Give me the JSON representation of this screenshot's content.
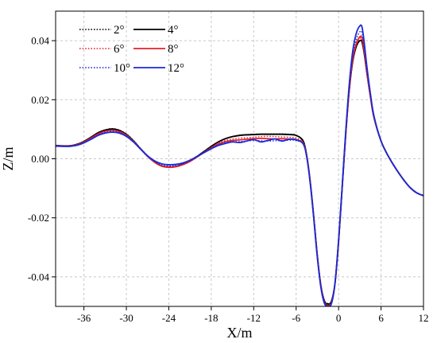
{
  "chart_data": {
    "type": "line",
    "title": "",
    "xlabel": "X/m",
    "ylabel": "Z/m",
    "xlim": [
      -40,
      12
    ],
    "ylim": [
      -0.05,
      0.05
    ],
    "xticks": [
      -36,
      -30,
      -24,
      -18,
      -12,
      -6,
      0,
      6,
      12
    ],
    "xtick_labels": [
      "-36",
      "-30",
      "-24",
      "-18",
      "-12",
      "-6",
      "0",
      "6",
      "12"
    ],
    "yticks": [
      -0.04,
      -0.02,
      0.0,
      0.02,
      0.04
    ],
    "ytick_labels": [
      "-0.04",
      "-0.02",
      "0.00",
      "0.02",
      "0.04"
    ],
    "grid": true,
    "legend_position": "top-left",
    "series": [
      {
        "name": "2°",
        "color": "#000000",
        "style": "dotted",
        "x": [
          -40,
          -38,
          -36.5,
          -35,
          -34,
          -33,
          -32,
          -31,
          -30,
          -29,
          -28,
          -27,
          -26,
          -25,
          -24,
          -23,
          -22,
          -21,
          -20,
          -19,
          -18,
          -17,
          -16,
          -15,
          -14,
          -13,
          -12,
          -11,
          -10,
          -9,
          -8,
          -7,
          -6,
          -5,
          -4.5,
          -4,
          -3.5,
          -3,
          -2.5,
          -2,
          -1.5,
          -1,
          -0.5,
          0,
          0.5,
          1,
          1.5,
          2,
          2.5,
          3,
          3.3,
          3.6,
          4,
          4.5,
          5,
          6,
          7,
          8,
          9,
          10,
          11,
          12
        ],
        "y": [
          0.0045,
          0.0044,
          0.0053,
          0.0073,
          0.0088,
          0.0098,
          0.0102,
          0.0097,
          0.0084,
          0.0062,
          0.0035,
          0.001,
          -0.001,
          -0.0023,
          -0.0027,
          -0.0025,
          -0.0018,
          -0.0007,
          0.0008,
          0.0025,
          0.0042,
          0.0057,
          0.0068,
          0.0075,
          0.008,
          0.0082,
          0.0083,
          0.0084,
          0.0084,
          0.0084,
          0.0084,
          0.0083,
          0.008,
          0.006,
          0.001,
          -0.008,
          -0.02,
          -0.033,
          -0.043,
          -0.048,
          -0.049,
          -0.048,
          -0.042,
          -0.028,
          -0.01,
          0.008,
          0.023,
          0.033,
          0.038,
          0.04,
          0.0395,
          0.036,
          0.029,
          0.021,
          0.014,
          0.006,
          0.001,
          -0.003,
          -0.0065,
          -0.0095,
          -0.0115,
          -0.0125
        ]
      },
      {
        "name": "4°",
        "color": "#000000",
        "style": "solid",
        "x": [
          -40,
          -38,
          -36.5,
          -35,
          -34,
          -33,
          -32,
          -31,
          -30,
          -29,
          -28,
          -27,
          -26,
          -25,
          -24,
          -23,
          -22,
          -21,
          -20,
          -19,
          -18,
          -17,
          -16,
          -15,
          -14,
          -13,
          -12,
          -11,
          -10,
          -9,
          -8,
          -7,
          -6,
          -5,
          -4.5,
          -4,
          -3.5,
          -3,
          -2.5,
          -2,
          -1.5,
          -1,
          -0.5,
          0,
          0.5,
          1,
          1.5,
          2,
          2.5,
          3,
          3.3,
          3.6,
          4,
          4.5,
          5,
          6,
          7,
          8,
          9,
          10,
          11,
          12
        ],
        "y": [
          0.0045,
          0.0044,
          0.0053,
          0.0073,
          0.0088,
          0.0097,
          0.0101,
          0.0096,
          0.0083,
          0.0061,
          0.0034,
          0.0009,
          -0.0011,
          -0.0024,
          -0.0028,
          -0.0026,
          -0.0018,
          -0.0007,
          0.0008,
          0.0025,
          0.0042,
          0.0057,
          0.0068,
          0.0075,
          0.0079,
          0.0081,
          0.0082,
          0.0083,
          0.0083,
          0.0083,
          0.0083,
          0.0082,
          0.0079,
          0.006,
          0.001,
          -0.008,
          -0.02,
          -0.033,
          -0.043,
          -0.0482,
          -0.0492,
          -0.0482,
          -0.042,
          -0.028,
          -0.01,
          0.008,
          0.023,
          0.033,
          0.038,
          0.04,
          0.0396,
          0.036,
          0.029,
          0.021,
          0.014,
          0.006,
          0.001,
          -0.003,
          -0.0065,
          -0.0095,
          -0.0115,
          -0.0125
        ]
      },
      {
        "name": "6°",
        "color": "#e8202a",
        "style": "dotted",
        "x": [
          -40,
          -38,
          -36.5,
          -35,
          -34,
          -33,
          -32,
          -31,
          -30,
          -29,
          -28,
          -27,
          -26,
          -25,
          -24,
          -23,
          -22,
          -21,
          -20,
          -19,
          -18,
          -17,
          -16,
          -15,
          -14,
          -13,
          -12,
          -11,
          -10,
          -9,
          -8,
          -7,
          -6,
          -5,
          -4.5,
          -4,
          -3.5,
          -3,
          -2.5,
          -2,
          -1.5,
          -1,
          -0.5,
          0,
          0.5,
          1,
          1.5,
          2,
          2.5,
          3,
          3.3,
          3.6,
          4,
          4.5,
          5,
          6,
          7,
          8,
          9,
          10,
          11,
          12
        ],
        "y": [
          0.0045,
          0.0044,
          0.0052,
          0.0071,
          0.0085,
          0.0094,
          0.0097,
          0.0093,
          0.0081,
          0.006,
          0.0034,
          0.0009,
          -0.0011,
          -0.0024,
          -0.0028,
          -0.0026,
          -0.0019,
          -0.0008,
          0.0007,
          0.0023,
          0.0039,
          0.0053,
          0.0062,
          0.0067,
          0.007,
          0.0071,
          0.0073,
          0.0075,
          0.0076,
          0.0075,
          0.0074,
          0.0073,
          0.007,
          0.0055,
          0.001,
          -0.008,
          -0.02,
          -0.033,
          -0.043,
          -0.0485,
          -0.0495,
          -0.0485,
          -0.042,
          -0.028,
          -0.01,
          0.008,
          0.023,
          0.0335,
          0.0385,
          0.0408,
          0.0405,
          0.0365,
          0.0292,
          0.021,
          0.014,
          0.006,
          0.001,
          -0.003,
          -0.0065,
          -0.0095,
          -0.0115,
          -0.0125
        ]
      },
      {
        "name": "8°",
        "color": "#e8202a",
        "style": "solid",
        "x": [
          -40,
          -38,
          -36.5,
          -35,
          -34,
          -33,
          -32,
          -31,
          -30,
          -29,
          -28,
          -27,
          -26,
          -25,
          -24,
          -23,
          -22,
          -21,
          -20,
          -19,
          -18,
          -17,
          -16,
          -15,
          -14,
          -13,
          -12,
          -11,
          -10,
          -9,
          -8,
          -7,
          -6,
          -5,
          -4.5,
          -4,
          -3.5,
          -3,
          -2.5,
          -2,
          -1.5,
          -1,
          -0.5,
          0,
          0.5,
          1,
          1.5,
          2,
          2.5,
          3,
          3.3,
          3.6,
          4,
          4.5,
          5,
          6,
          7,
          8,
          9,
          10,
          11,
          12
        ],
        "y": [
          0.0044,
          0.0043,
          0.0051,
          0.007,
          0.0084,
          0.0093,
          0.0096,
          0.0092,
          0.008,
          0.0059,
          0.0033,
          0.0008,
          -0.0012,
          -0.0025,
          -0.0029,
          -0.0027,
          -0.002,
          -0.0009,
          0.0006,
          0.0022,
          0.0037,
          0.005,
          0.0058,
          0.0062,
          0.0064,
          0.0066,
          0.0068,
          0.0069,
          0.0068,
          0.0067,
          0.0068,
          0.0067,
          0.0065,
          0.0052,
          0.001,
          -0.008,
          -0.02,
          -0.033,
          -0.0432,
          -0.0487,
          -0.0497,
          -0.0487,
          -0.042,
          -0.028,
          -0.01,
          0.008,
          0.0232,
          0.0338,
          0.039,
          0.0413,
          0.041,
          0.0368,
          0.0294,
          0.021,
          0.014,
          0.006,
          0.001,
          -0.003,
          -0.0065,
          -0.0095,
          -0.0115,
          -0.0125
        ]
      },
      {
        "name": "10°",
        "color": "#1a2ad6",
        "style": "dotted",
        "x": [
          -40,
          -38,
          -36.5,
          -35,
          -34,
          -33,
          -32,
          -31,
          -30,
          -29,
          -28,
          -27,
          -26,
          -25,
          -24,
          -23,
          -22,
          -21,
          -20,
          -19,
          -18,
          -17,
          -16,
          -15,
          -14,
          -13,
          -12,
          -11,
          -10,
          -9,
          -8,
          -7,
          -6,
          -5,
          -4.5,
          -4,
          -3.5,
          -3,
          -2.5,
          -2,
          -1.5,
          -1,
          -0.5,
          0,
          0.5,
          1,
          1.5,
          2,
          2.5,
          3,
          3.3,
          3.6,
          4,
          4.5,
          5,
          6,
          7,
          8,
          9,
          10,
          11,
          12
        ],
        "y": [
          0.0044,
          0.0043,
          0.005,
          0.0068,
          0.0081,
          0.009,
          0.0093,
          0.0089,
          0.0078,
          0.0058,
          0.0033,
          0.0008,
          -0.001,
          -0.0021,
          -0.0024,
          -0.0023,
          -0.0017,
          -0.0007,
          0.0007,
          0.0022,
          0.0036,
          0.0048,
          0.0055,
          0.0058,
          0.0058,
          0.006,
          0.0062,
          0.0061,
          0.006,
          0.0061,
          0.0062,
          0.0063,
          0.0062,
          0.005,
          0.0008,
          -0.0082,
          -0.0202,
          -0.0332,
          -0.0434,
          -0.0488,
          -0.0498,
          -0.0488,
          -0.042,
          -0.0278,
          -0.0098,
          0.0085,
          0.024,
          0.035,
          0.0405,
          0.043,
          0.0428,
          0.0382,
          0.0302,
          0.0215,
          0.0142,
          0.006,
          0.001,
          -0.003,
          -0.0065,
          -0.0095,
          -0.0115,
          -0.0125
        ]
      },
      {
        "name": "12°",
        "color": "#1a2ad6",
        "style": "solid",
        "x": [
          -40,
          -38,
          -36.5,
          -35,
          -34,
          -33,
          -32,
          -31,
          -30,
          -29,
          -28,
          -27,
          -26,
          -25,
          -24,
          -23,
          -22,
          -21,
          -20,
          -19,
          -18,
          -17,
          -16,
          -15,
          -14,
          -13,
          -12,
          -11,
          -10,
          -9,
          -8,
          -7,
          -6,
          -5,
          -4.5,
          -4,
          -3.5,
          -3,
          -2.5,
          -2,
          -1.5,
          -1,
          -0.5,
          0,
          0.5,
          1,
          1.5,
          2,
          2.5,
          3,
          3.3,
          3.6,
          4,
          4.5,
          5,
          6,
          7,
          8,
          9,
          10,
          11,
          12
        ],
        "y": [
          0.0043,
          0.0042,
          0.0049,
          0.0066,
          0.0079,
          0.0087,
          0.009,
          0.0087,
          0.0076,
          0.0057,
          0.0033,
          0.001,
          -0.0007,
          -0.0017,
          -0.002,
          -0.0019,
          -0.0014,
          -0.0005,
          0.0008,
          0.0021,
          0.0034,
          0.0045,
          0.0052,
          0.0057,
          0.0055,
          0.006,
          0.0065,
          0.0057,
          0.0062,
          0.0067,
          0.006,
          0.0066,
          0.0064,
          0.005,
          0.0005,
          -0.0085,
          -0.0205,
          -0.0335,
          -0.0436,
          -0.049,
          -0.05,
          -0.049,
          -0.042,
          -0.0275,
          -0.0095,
          0.009,
          0.025,
          0.0365,
          0.0425,
          0.045,
          0.0447,
          0.0398,
          0.0312,
          0.022,
          0.0145,
          0.006,
          0.001,
          -0.003,
          -0.0065,
          -0.0095,
          -0.0115,
          -0.0125
        ]
      }
    ]
  }
}
